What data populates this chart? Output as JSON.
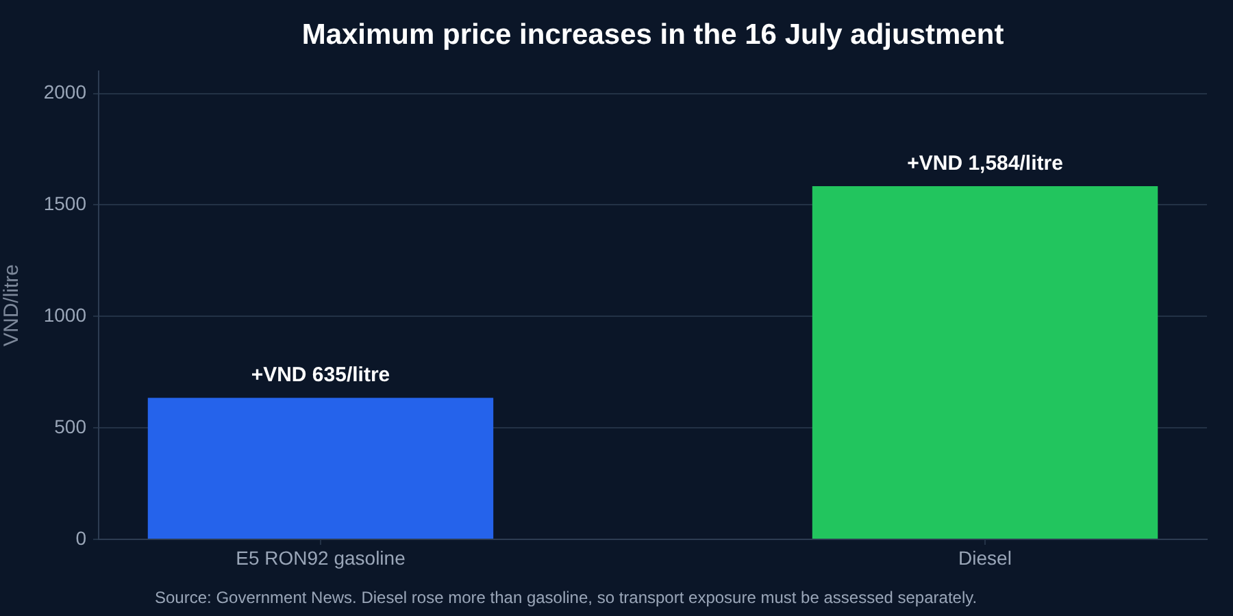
{
  "chart_data": {
    "type": "bar",
    "title": "Maximum price increases in the 16 July adjustment",
    "ylabel": "VND/litre",
    "categories": [
      "E5 RON92 gasoline",
      "Diesel"
    ],
    "values": [
      635,
      1584
    ],
    "colors": [
      "#2563eb",
      "#22c55e"
    ],
    "value_labels": [
      "+VND 635/litre",
      "+VND 1,584/litre"
    ],
    "ylim": [
      0,
      2100
    ],
    "yticks": [
      0,
      500,
      1000,
      1500,
      2000
    ],
    "grid": "y",
    "annotations": [
      "Source: Government News. Diesel rose more than gasoline, so transport exposure must be assessed separately."
    ]
  }
}
